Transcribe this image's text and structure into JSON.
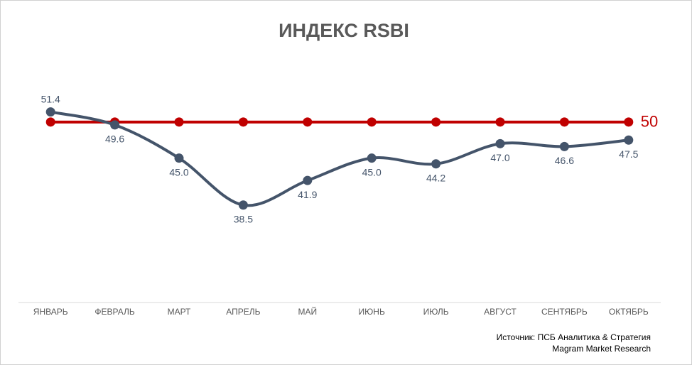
{
  "chart_data": {
    "type": "line",
    "title": "ИНДЕКС RSBI",
    "categories": [
      "ЯНВАРЬ",
      "ФЕВРАЛЬ",
      "МАРТ",
      "АПРЕЛЬ",
      "МАЙ",
      "ИЮНЬ",
      "ИЮЛЬ",
      "АВГУСТ",
      "СЕНТЯБРЬ",
      "ОКТЯБРЬ"
    ],
    "series": [
      {
        "name": "ИНДЕКС RSBI",
        "color": "#44546a",
        "smooth": true,
        "values": [
          51.4,
          49.6,
          45.0,
          38.5,
          41.9,
          45.0,
          44.2,
          47.0,
          46.6,
          47.5
        ],
        "value_labels": [
          "51.4",
          "49.6",
          "45.0",
          "38.5",
          "41.9",
          "45.0",
          "44.2",
          "47.0",
          "46.6",
          "47.5"
        ]
      },
      {
        "name": "50",
        "color": "#c00000",
        "smooth": false,
        "values": [
          50,
          50,
          50,
          50,
          50,
          50,
          50,
          50,
          50,
          50
        ]
      }
    ],
    "ylim": [
      25,
      55
    ],
    "source": [
      "Источник: ПСБ Аналитика & Стратегия",
      "Magram Market Research"
    ]
  }
}
